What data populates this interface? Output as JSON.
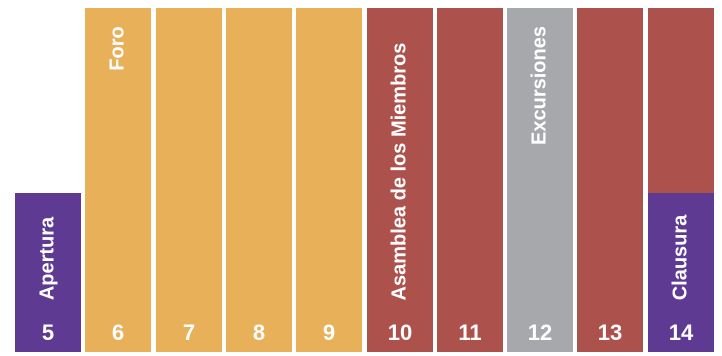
{
  "colors": {
    "purple": "#5e3a93",
    "orange": "#e8b058",
    "red": "#ad514d",
    "gray": "#a7a8ab"
  },
  "days": [
    {
      "day": "5",
      "label": "Apertura",
      "color": "purple",
      "tall": false
    },
    {
      "day": "6",
      "label": "Foro",
      "color": "orange",
      "tall": true
    },
    {
      "day": "7",
      "label": "",
      "color": "orange",
      "tall": true
    },
    {
      "day": "8",
      "label": "",
      "color": "orange",
      "tall": true
    },
    {
      "day": "9",
      "label": "",
      "color": "orange",
      "tall": true
    },
    {
      "day": "10",
      "label": "Asamblea de los Miembros",
      "color": "red",
      "tall": true
    },
    {
      "day": "11",
      "label": "",
      "color": "red",
      "tall": true
    },
    {
      "day": "12",
      "label": "Excursiones",
      "color": "gray",
      "tall": true
    },
    {
      "day": "13",
      "label": "",
      "color": "red",
      "tall": true
    },
    {
      "day": "14",
      "label": "Clausura",
      "color": "purple",
      "tall": false
    }
  ],
  "extra": {
    "color": "red"
  }
}
